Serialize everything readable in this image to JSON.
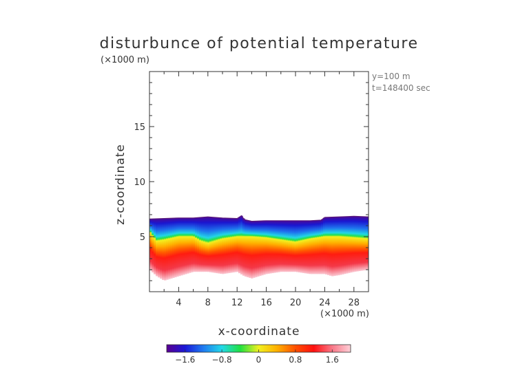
{
  "chart_data": {
    "type": "heatmap",
    "title": "disturbunce of potential temperature",
    "unit_label_z": "(×1000 m)",
    "unit_label_x": "(×1000 m)",
    "annotation_y": "y=100 m",
    "annotation_t": "t=148400 sec",
    "xlabel": "x-coordinate",
    "ylabel": "z-coordinate",
    "xlim": [
      0,
      30
    ],
    "ylim": [
      0,
      20
    ],
    "x_ticks": [
      4,
      8,
      12,
      16,
      20,
      24,
      28
    ],
    "y_ticks": [
      5,
      10,
      15
    ],
    "colorbar": {
      "range": [
        -2,
        2
      ],
      "ticks": [
        -1.6,
        -0.8,
        0,
        0.8,
        1.6
      ],
      "tick_labels": [
        "−1.6",
        "−0.8",
        "0",
        "0.8",
        "1.6"
      ],
      "colors": [
        "#5a0090",
        "#1a18d8",
        "#1f7cf0",
        "#22d8e8",
        "#20e040",
        "#f0f020",
        "#ffb000",
        "#ff5000",
        "#ff1010",
        "#f87888",
        "#ffd0d8"
      ]
    },
    "field": {
      "top_boundary": {
        "x": [
          0,
          2,
          4,
          6,
          8,
          10,
          12,
          12.6,
          13,
          14,
          16,
          18,
          20,
          22,
          23.5,
          24,
          26,
          28,
          30
        ],
        "z": [
          6.6,
          6.65,
          6.7,
          6.7,
          6.8,
          6.7,
          6.65,
          6.9,
          6.55,
          6.4,
          6.45,
          6.45,
          6.45,
          6.45,
          6.5,
          6.75,
          6.8,
          6.85,
          6.8
        ]
      },
      "neutral_zero_contour": {
        "x": [
          0,
          0.5,
          1,
          2,
          4,
          6,
          7,
          8,
          10,
          12,
          14,
          16,
          18,
          20,
          22,
          24,
          26,
          28,
          30
        ],
        "z": [
          5.5,
          5.0,
          4.6,
          4.7,
          5.0,
          5.0,
          4.6,
          4.4,
          4.8,
          5.0,
          5.0,
          4.9,
          4.7,
          4.5,
          4.8,
          5.0,
          5.0,
          4.9,
          4.8
        ]
      },
      "bottom_boundary": {
        "x": [
          0,
          1,
          2,
          3,
          4,
          5,
          6,
          8,
          10,
          12,
          13,
          14,
          16,
          18,
          20,
          22,
          24,
          25,
          26,
          28,
          30
        ],
        "z": [
          2.0,
          1.4,
          1.0,
          1.2,
          1.4,
          1.6,
          1.8,
          1.8,
          1.6,
          1.8,
          1.4,
          1.2,
          1.6,
          1.8,
          1.8,
          1.6,
          1.6,
          1.4,
          1.5,
          1.8,
          2.0
        ]
      }
    }
  }
}
